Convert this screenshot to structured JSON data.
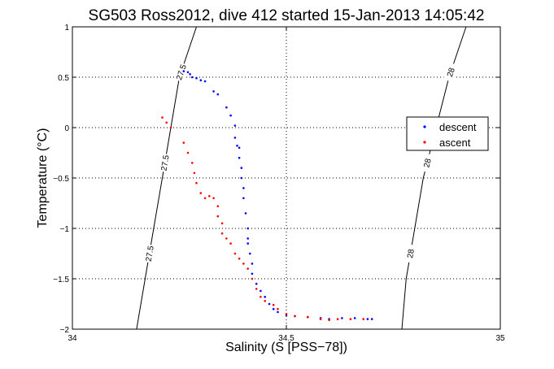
{
  "chart_data": {
    "type": "scatter",
    "title": "SG503 Ross2012, dive 412 started 15-Jan-2013 14:05:42",
    "xlabel": "Salinity (S [PSS−78])",
    "ylabel": "Temperature (°C)",
    "xlim": [
      34,
      35
    ],
    "ylim": [
      -2,
      1
    ],
    "x_ticks": [
      34,
      34.5,
      35
    ],
    "x_tick_labels": [
      "34",
      "34.5",
      "35"
    ],
    "y_ticks": [
      -2,
      -1.5,
      -1,
      -0.5,
      0,
      0.5,
      1
    ],
    "y_tick_labels": [
      "−2",
      "−1.5",
      "−1",
      "−0.5",
      "0",
      "0.5",
      "1"
    ],
    "grid": true,
    "legend_position": "right",
    "series": [
      {
        "name": "descent",
        "color": "#0000ff",
        "marker": "dot",
        "points": [
          [
            34.26,
            0.56
          ],
          [
            34.27,
            0.55
          ],
          [
            34.275,
            0.53
          ],
          [
            34.28,
            0.5
          ],
          [
            34.29,
            0.49
          ],
          [
            34.3,
            0.47
          ],
          [
            34.31,
            0.46
          ],
          [
            34.33,
            0.36
          ],
          [
            34.34,
            0.33
          ],
          [
            34.36,
            0.2
          ],
          [
            34.37,
            0.12
          ],
          [
            34.38,
            0.02
          ],
          [
            34.38,
            -0.1
          ],
          [
            34.385,
            -0.18
          ],
          [
            34.39,
            -0.2
          ],
          [
            34.39,
            -0.3
          ],
          [
            34.395,
            -0.4
          ],
          [
            34.395,
            -0.5
          ],
          [
            34.4,
            -0.6
          ],
          [
            34.4,
            -0.7
          ],
          [
            34.405,
            -0.85
          ],
          [
            34.41,
            -1.0
          ],
          [
            34.41,
            -1.1
          ],
          [
            34.41,
            -1.15
          ],
          [
            34.415,
            -1.25
          ],
          [
            34.42,
            -1.35
          ],
          [
            34.42,
            -1.45
          ],
          [
            34.43,
            -1.55
          ],
          [
            34.44,
            -1.62
          ],
          [
            34.45,
            -1.68
          ],
          [
            34.46,
            -1.75
          ],
          [
            34.47,
            -1.8
          ],
          [
            34.48,
            -1.83
          ],
          [
            34.5,
            -1.86
          ],
          [
            34.52,
            -1.87
          ],
          [
            34.55,
            -1.88
          ],
          [
            34.58,
            -1.89
          ],
          [
            34.6,
            -1.9
          ],
          [
            34.63,
            -1.89
          ],
          [
            34.66,
            -1.89
          ],
          [
            34.69,
            -1.9
          ],
          [
            34.7,
            -1.9
          ]
        ]
      },
      {
        "name": "ascent",
        "color": "#ff0000",
        "marker": "dot",
        "points": [
          [
            34.21,
            0.1
          ],
          [
            34.22,
            0.05
          ],
          [
            34.23,
            0.0
          ],
          [
            34.26,
            -0.15
          ],
          [
            34.27,
            -0.25
          ],
          [
            34.28,
            -0.35
          ],
          [
            34.285,
            -0.45
          ],
          [
            34.29,
            -0.55
          ],
          [
            34.3,
            -0.65
          ],
          [
            34.31,
            -0.7
          ],
          [
            34.32,
            -0.68
          ],
          [
            34.33,
            -0.7
          ],
          [
            34.34,
            -0.78
          ],
          [
            34.34,
            -0.88
          ],
          [
            34.35,
            -0.95
          ],
          [
            34.35,
            -1.05
          ],
          [
            34.36,
            -1.1
          ],
          [
            34.37,
            -1.15
          ],
          [
            34.38,
            -1.25
          ],
          [
            34.39,
            -1.3
          ],
          [
            34.4,
            -1.35
          ],
          [
            34.41,
            -1.4
          ],
          [
            34.42,
            -1.5
          ],
          [
            34.43,
            -1.6
          ],
          [
            34.44,
            -1.68
          ],
          [
            34.45,
            -1.72
          ],
          [
            34.47,
            -1.76
          ],
          [
            34.48,
            -1.8
          ],
          [
            34.5,
            -1.85
          ],
          [
            34.52,
            -1.87
          ],
          [
            34.55,
            -1.88
          ],
          [
            34.58,
            -1.9
          ],
          [
            34.6,
            -1.91
          ],
          [
            34.62,
            -1.9
          ],
          [
            34.65,
            -1.9
          ],
          [
            34.68,
            -1.9
          ]
        ]
      }
    ],
    "contours": [
      {
        "label": "27.5",
        "points": [
          [
            34.15,
            -2
          ],
          [
            34.17,
            -1.5
          ],
          [
            34.19,
            -1
          ],
          [
            34.21,
            -0.5
          ],
          [
            34.23,
            0
          ],
          [
            34.25,
            0.5
          ],
          [
            34.29,
            1
          ]
        ]
      },
      {
        "label": "28",
        "points": [
          [
            34.77,
            -2
          ],
          [
            34.78,
            -1.5
          ],
          [
            34.8,
            -1
          ],
          [
            34.82,
            -0.5
          ],
          [
            34.85,
            0
          ],
          [
            34.88,
            0.5
          ],
          [
            34.92,
            1
          ]
        ]
      }
    ]
  }
}
